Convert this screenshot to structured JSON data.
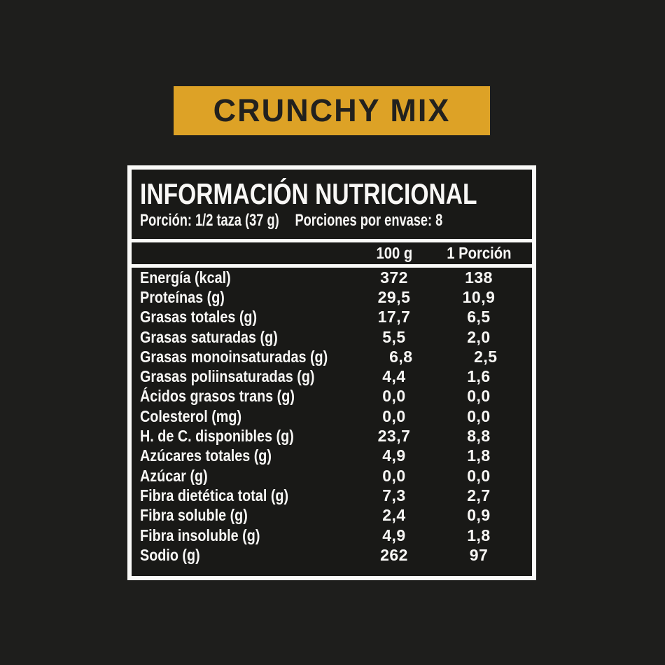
{
  "background_color": "#1e1e1c",
  "banner": {
    "label": "CRUNCHY MIX",
    "bg_color": "#dda226",
    "text_color": "#22211e"
  },
  "panel": {
    "title": "INFORMACIÓN NUTRICIONAL",
    "border_color": "#fafaf8",
    "text_color": "#f8f7f5",
    "serving": {
      "portion": "Porción: 1/2 taza (37 g)",
      "per_container": "Porciones por envase: 8"
    },
    "columns": {
      "per_100g": "100 g",
      "per_portion": "1 Porción"
    },
    "rows": [
      {
        "label": "Energía (kcal)",
        "per_100g": "372",
        "per_portion": "138"
      },
      {
        "label": "Proteínas (g)",
        "per_100g": "29,5",
        "per_portion": "10,9"
      },
      {
        "label": "Grasas totales (g)",
        "per_100g": "17,7",
        "per_portion": "6,5"
      },
      {
        "label": "Grasas saturadas (g)",
        "per_100g": "5,5",
        "per_portion": "2,0"
      },
      {
        "label": "Grasas monoinsaturadas (g)",
        "per_100g": "6,8",
        "per_portion": "2,5"
      },
      {
        "label": "Grasas poliinsaturadas (g)",
        "per_100g": "4,4",
        "per_portion": "1,6"
      },
      {
        "label": "Ácidos grasos trans (g)",
        "per_100g": "0,0",
        "per_portion": "0,0"
      },
      {
        "label": "Colesterol (mg)",
        "per_100g": "0,0",
        "per_portion": "0,0"
      },
      {
        "label": "H. de C. disponibles (g)",
        "per_100g": "23,7",
        "per_portion": "8,8"
      },
      {
        "label": "Azúcares totales (g)",
        "per_100g": "4,9",
        "per_portion": "1,8"
      },
      {
        "label": "Azúcar (g)",
        "per_100g": "0,0",
        "per_portion": "0,0"
      },
      {
        "label": "Fibra dietética total (g)",
        "per_100g": "7,3",
        "per_portion": "2,7"
      },
      {
        "label": "Fibra soluble (g)",
        "per_100g": "2,4",
        "per_portion": "0,9"
      },
      {
        "label": "Fibra insoluble (g)",
        "per_100g": "4,9",
        "per_portion": "1,8"
      },
      {
        "label": "Sodio (g)",
        "per_100g": "262",
        "per_portion": "97"
      }
    ]
  }
}
